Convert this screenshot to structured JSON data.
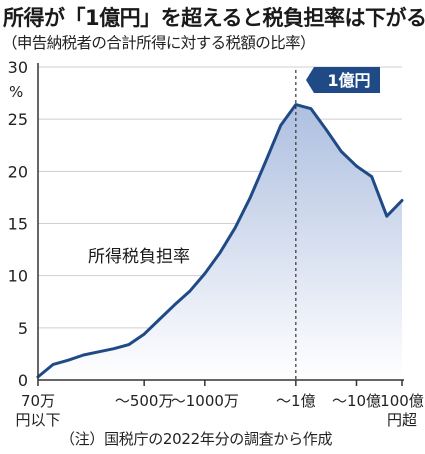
{
  "title": "所得が「1億円」を超えると税負担率は下がる",
  "subtitle": "（申告納税者の合計所得に対する税額の比率）",
  "note": "（注）国税庁の2022年分の調査から作成",
  "colors": {
    "line": "#1f4a86",
    "fill_top": "#aebfe0",
    "fill_bottom": "#ffffff",
    "marker": "#1f4a86",
    "axis": "#333333",
    "grid": "#cfcfcf"
  },
  "chart_data": {
    "type": "area",
    "series_label": "所得税負担率",
    "y_unit": "%",
    "ylim": [
      0,
      30
    ],
    "y_ticks": [
      0,
      5,
      10,
      15,
      20,
      25,
      30
    ],
    "x_tick_labels": [
      "70万円以下",
      "～500万",
      "～1000万",
      "～1億",
      "～10億",
      "100億円超"
    ],
    "marker_label": "1億円",
    "grid": "horizontal",
    "values": [
      0.3,
      1.5,
      1.9,
      2.4,
      2.7,
      3.0,
      3.4,
      4.4,
      5.8,
      7.2,
      8.5,
      10.2,
      12.2,
      14.6,
      17.5,
      20.9,
      24.4,
      26.4,
      26.0,
      24.0,
      21.9,
      20.5,
      19.5,
      15.7,
      17.2
    ],
    "marker_index": 17,
    "x_tick_positions": [
      0,
      7,
      11,
      17,
      21,
      24
    ]
  }
}
